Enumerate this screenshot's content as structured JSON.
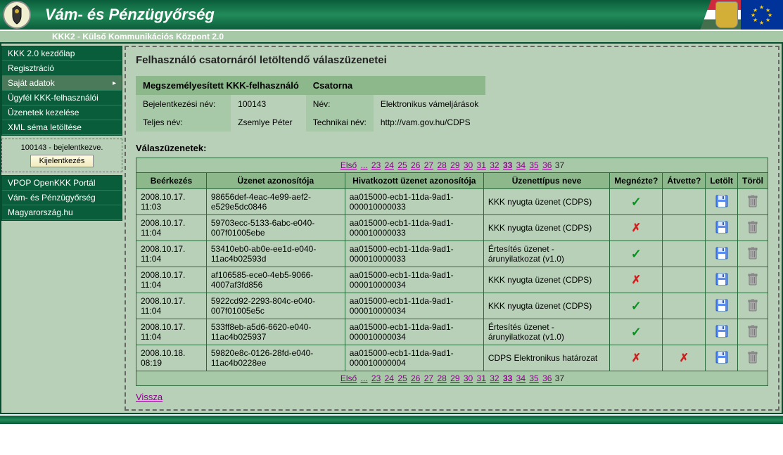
{
  "header": {
    "title": "Vám- és Pénzügyőrség",
    "subtitle": "KKK2 - Külső Kommunikációs Központ 2.0"
  },
  "sidebar": {
    "menu": [
      {
        "label": "KKK 2.0 kezdőlap",
        "sel": false
      },
      {
        "label": "Regisztráció",
        "sel": false
      },
      {
        "label": "Saját adatok",
        "sel": true,
        "arrow": true
      },
      {
        "label": "Ügyfél KKK-felhasználói",
        "sel": false
      },
      {
        "label": "Üzenetek kezelése",
        "sel": false
      },
      {
        "label": "XML séma letöltése",
        "sel": false
      }
    ],
    "login_status": "100143 - bejelentkezve.",
    "logout_label": "Kijelentkezés",
    "ext_links": [
      {
        "label": "VPOP OpenKKK Portál"
      },
      {
        "label": "Vám- és Pénzügyőrség"
      },
      {
        "label": "Magyarország.hu"
      }
    ]
  },
  "main": {
    "page_title": "Felhasználó csatornáról letöltendő válaszüzenetei",
    "info": {
      "header_user": "Megszemélyesített KKK-felhasználó",
      "header_channel": "Csatorna",
      "login_label": "Bejelentkezési név:",
      "login_value": "100143",
      "name_label": "Név:",
      "name_value": "Elektronikus vámeljárások",
      "fullname_label": "Teljes név:",
      "fullname_value": "Zsemlye Péter",
      "techname_label": "Technikai név:",
      "techname_value": "http://vam.gov.hu/CDPS"
    },
    "section_label": "Válaszüzenetek:",
    "pager": {
      "first": "Első",
      "dots": "...",
      "pages": [
        "23",
        "24",
        "25",
        "26",
        "27",
        "28",
        "29",
        "30",
        "31",
        "32",
        "33",
        "34",
        "35",
        "36"
      ],
      "current": "37"
    },
    "columns": [
      "Beérkezés",
      "Üzenet azonosítója",
      "Hivatkozott üzenet azonosítója",
      "Üzenettípus neve",
      "Megnézte?",
      "Átvette?",
      "Letölt",
      "Töröl"
    ],
    "rows": [
      {
        "t": "2008.10.17. 11:03",
        "id": "98656def-4eac-4e99-aef2-e529e5dc0846",
        "ref": "aa015000-ecb1-11da-9ad1-000010000033",
        "type": "KKK nyugta üzenet (CDPS)",
        "seen": "y",
        "taken": ""
      },
      {
        "t": "2008.10.17. 11:04",
        "id": "59703ecc-5133-6abc-e040-007f01005ebe",
        "ref": "aa015000-ecb1-11da-9ad1-000010000033",
        "type": "KKK nyugta üzenet (CDPS)",
        "seen": "n",
        "taken": ""
      },
      {
        "t": "2008.10.17. 11:04",
        "id": "53410eb0-ab0e-ee1d-e040-11ac4b02593d",
        "ref": "aa015000-ecb1-11da-9ad1-000010000033",
        "type": "Értesítés üzenet - árunyilatkozat (v1.0)",
        "seen": "y",
        "taken": ""
      },
      {
        "t": "2008.10.17. 11:04",
        "id": "af106585-ece0-4eb5-9066-4007af3fd856",
        "ref": "aa015000-ecb1-11da-9ad1-000010000034",
        "type": "KKK nyugta üzenet (CDPS)",
        "seen": "n",
        "taken": ""
      },
      {
        "t": "2008.10.17. 11:04",
        "id": "5922cd92-2293-804c-e040-007f01005e5c",
        "ref": "aa015000-ecb1-11da-9ad1-000010000034",
        "type": "KKK nyugta üzenet (CDPS)",
        "seen": "y",
        "taken": ""
      },
      {
        "t": "2008.10.17. 11:04",
        "id": "533ff8eb-a5d6-6620-e040-11ac4b025937",
        "ref": "aa015000-ecb1-11da-9ad1-000010000034",
        "type": "Értesítés üzenet - árunyilatkozat (v1.0)",
        "seen": "y",
        "taken": ""
      },
      {
        "t": "2008.10.18. 08:19",
        "id": "59820e8c-0126-28fd-e040-11ac4b0228ee",
        "ref": "aa015000-ecb1-11da-9ad1-000010000004",
        "type": "CDPS Elektronikus határozat",
        "seen": "n",
        "taken": "n"
      }
    ],
    "back_label": "Vissza"
  }
}
